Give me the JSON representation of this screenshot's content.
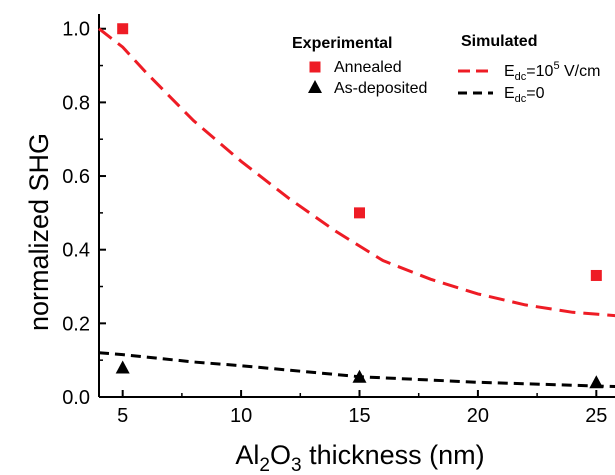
{
  "chart_data": {
    "type": "scatter",
    "xlabel": {
      "main": "Al",
      "sub1": "2",
      "mid": "O",
      "sub2": "3",
      "rest": " thickness (nm)"
    },
    "ylabel": "normalized SHG",
    "xlim": [
      4,
      26
    ],
    "ylim": [
      0,
      1.04
    ],
    "x_ticks": [
      5,
      10,
      15,
      20,
      25
    ],
    "x_tick_labels": [
      "5",
      "10",
      "15",
      "20",
      "25"
    ],
    "y_ticks": [
      0.0,
      0.2,
      0.4,
      0.6,
      0.8,
      1.0
    ],
    "y_tick_labels": [
      "0.0",
      "0.2",
      "0.4",
      "0.6",
      "0.8",
      "1.0"
    ],
    "legend": {
      "experimental_heading": "Experimental",
      "simulated_heading": "Simulated",
      "placement": "top-right"
    },
    "series": [
      {
        "name": "Annealed",
        "kind": "points",
        "marker": "square",
        "color": "#ee1c25",
        "x": [
          5,
          15,
          25
        ],
        "y": [
          1.0,
          0.5,
          0.33
        ]
      },
      {
        "name": "As-deposited",
        "kind": "points",
        "marker": "triangle",
        "color": "#000000",
        "x": [
          5,
          15,
          25
        ],
        "y": [
          0.08,
          0.055,
          0.04
        ]
      },
      {
        "name_parts": {
          "pre": "E",
          "sub": "dc",
          "mid": "=10",
          "sup": "5",
          "post": " V/cm"
        },
        "kind": "line",
        "dash": "long",
        "color": "#ee1c25",
        "x": [
          4,
          5,
          6,
          8,
          10,
          12,
          14,
          15,
          16,
          18,
          20,
          22,
          24,
          25,
          26
        ],
        "y": [
          1.0,
          0.95,
          0.88,
          0.75,
          0.64,
          0.54,
          0.45,
          0.41,
          0.37,
          0.32,
          0.28,
          0.25,
          0.23,
          0.225,
          0.22
        ]
      },
      {
        "name_parts": {
          "pre": "E",
          "sub": "dc",
          "mid": "=0",
          "sup": "",
          "post": ""
        },
        "kind": "line",
        "dash": "short",
        "color": "#000000",
        "x": [
          4,
          5,
          8,
          10,
          15,
          20,
          25,
          26
        ],
        "y": [
          0.12,
          0.115,
          0.095,
          0.085,
          0.055,
          0.04,
          0.03,
          0.028
        ]
      }
    ]
  }
}
